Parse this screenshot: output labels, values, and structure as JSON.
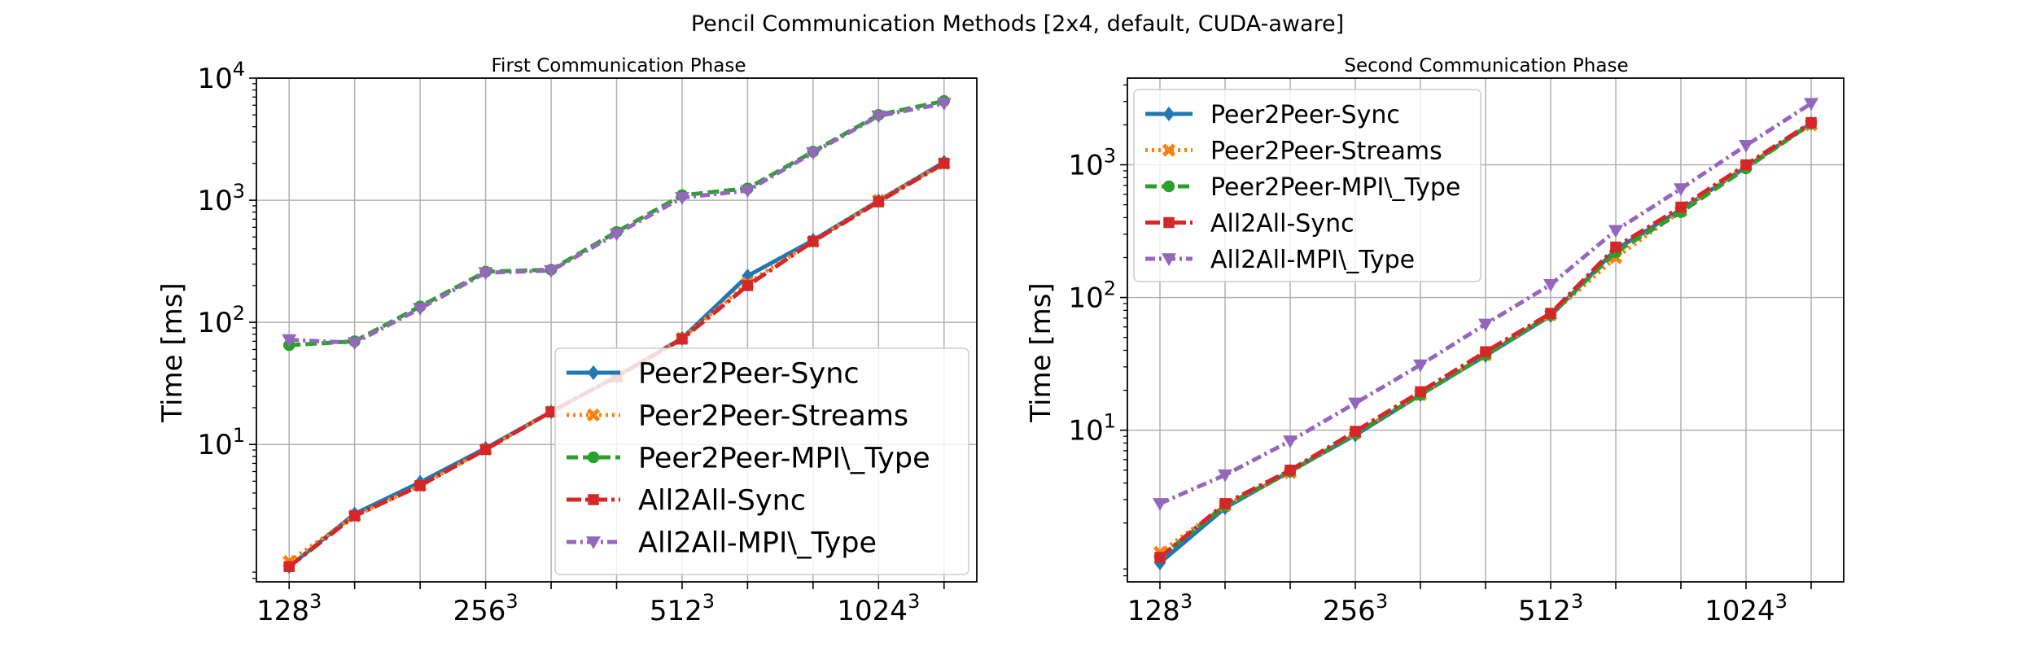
{
  "figure": {
    "title": "Pencil Communication Methods [2x4, default, CUDA-aware]"
  },
  "chart_data": [
    {
      "type": "line",
      "title": "First Communication Phase",
      "xlabel": "",
      "ylabel": "Time [ms]",
      "yscale": "log",
      "ylim": [
        0.75,
        10000
      ],
      "xlim": [
        -0.5,
        10.5
      ],
      "grid": true,
      "legend_position": "lower-right",
      "x": [
        0,
        1,
        2,
        3,
        4,
        5,
        6,
        7,
        8,
        9,
        10
      ],
      "x_ticks": [
        {
          "pos": 0,
          "base": "128",
          "sup": "3"
        },
        {
          "pos": 3,
          "base": "256",
          "sup": "3"
        },
        {
          "pos": 6,
          "base": "512",
          "sup": "3"
        },
        {
          "pos": 9,
          "base": "1024",
          "sup": "3"
        }
      ],
      "y_ticks": [
        {
          "value": 10,
          "base": "10",
          "sup": "1"
        },
        {
          "value": 100,
          "base": "10",
          "sup": "2"
        },
        {
          "value": 1000,
          "base": "10",
          "sup": "3"
        },
        {
          "value": 10000,
          "base": "10",
          "sup": "4"
        }
      ],
      "series": [
        {
          "name": "Peer2Peer-Sync",
          "values": [
            1.0,
            2.7,
            4.9,
            9.3,
            18.5,
            36,
            74,
            240,
            470,
            990,
            2050
          ]
        },
        {
          "name": "Peer2Peer-Streams",
          "values": [
            1.1,
            2.6,
            4.6,
            9.1,
            18.5,
            36,
            74,
            210,
            460,
            1000,
            2000
          ]
        },
        {
          "name": "Peer2Peer-MPI\\_Type",
          "values": [
            65,
            70,
            135,
            260,
            270,
            550,
            1100,
            1250,
            2500,
            5000,
            6500
          ]
        },
        {
          "name": "All2All-Sync",
          "values": [
            1.0,
            2.6,
            4.6,
            9.1,
            18.5,
            36,
            73,
            200,
            460,
            970,
            2000
          ]
        },
        {
          "name": "All2All-MPI\\_Type",
          "values": [
            72,
            68,
            130,
            255,
            265,
            530,
            1050,
            1200,
            2450,
            4900,
            6200
          ]
        }
      ]
    },
    {
      "type": "line",
      "title": "Second Communication Phase",
      "xlabel": "",
      "ylabel": "Time [ms]",
      "yscale": "log",
      "ylim": [
        0.72,
        4500
      ],
      "xlim": [
        -0.5,
        10.5
      ],
      "grid": true,
      "legend_position": "upper-left",
      "x": [
        0,
        1,
        2,
        3,
        4,
        5,
        6,
        7,
        8,
        9,
        10
      ],
      "x_ticks": [
        {
          "pos": 0,
          "base": "128",
          "sup": "3"
        },
        {
          "pos": 3,
          "base": "256",
          "sup": "3"
        },
        {
          "pos": 6,
          "base": "512",
          "sup": "3"
        },
        {
          "pos": 9,
          "base": "1024",
          "sup": "3"
        }
      ],
      "y_ticks": [
        {
          "value": 10,
          "base": "10",
          "sup": "1"
        },
        {
          "value": 100,
          "base": "10",
          "sup": "2"
        },
        {
          "value": 1000,
          "base": "10",
          "sup": "3"
        }
      ],
      "series": [
        {
          "name": "Peer2Peer-Sync",
          "values": [
            1.0,
            2.6,
            4.9,
            9.2,
            18.5,
            36.5,
            73,
            230,
            460,
            960,
            2050
          ]
        },
        {
          "name": "Peer2Peer-Streams",
          "values": [
            1.2,
            2.7,
            4.8,
            9.5,
            18.5,
            37,
            74,
            200,
            450,
            980,
            2000
          ]
        },
        {
          "name": "Peer2Peer-MPI\\_Type",
          "values": [
            1.1,
            2.7,
            4.9,
            9.4,
            18.5,
            37,
            74,
            220,
            440,
            940,
            2050
          ]
        },
        {
          "name": "All2All-Sync",
          "values": [
            1.1,
            2.8,
            5.0,
            9.8,
            19.5,
            39,
            76,
            240,
            480,
            1000,
            2080
          ]
        },
        {
          "name": "All2All-MPI\\_Type",
          "values": [
            2.8,
            4.6,
            8.3,
            16,
            31,
            63,
            125,
            320,
            660,
            1400,
            2900
          ]
        }
      ]
    }
  ],
  "series_styles": [
    {
      "color": "#1f77b4",
      "dash": "",
      "marker": "diamond"
    },
    {
      "color": "#ff7f0e",
      "dash": "3,5",
      "marker": "x"
    },
    {
      "color": "#2ca02c",
      "dash": "14,6",
      "marker": "circle"
    },
    {
      "color": "#d62728",
      "dash": "18,5,4,5",
      "marker": "square"
    },
    {
      "color": "#9467bd",
      "dash": "12,5,3,5",
      "marker": "triangle-down"
    }
  ]
}
